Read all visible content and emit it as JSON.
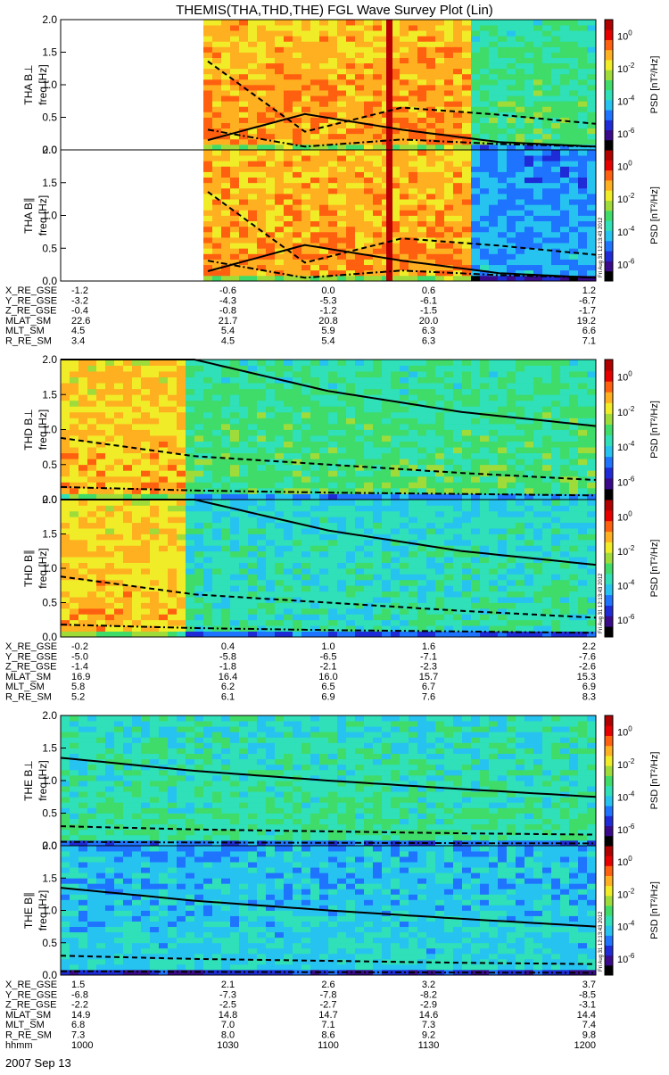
{
  "title": "THEMIS(THA,THD,THE) FGL Wave Survey Plot (Lin)",
  "date_label": "2007 Sep 13",
  "stamp": "Fri Aug 31 12:13:43 2012",
  "colorbar": {
    "label": "PSD [nT²/Hz]",
    "ticks": [
      {
        "base": "10",
        "exp": "0",
        "value": 1
      },
      {
        "base": "10",
        "exp": "-2",
        "value": 0.01
      },
      {
        "base": "10",
        "exp": "-4",
        "value": 0.0001
      },
      {
        "base": "10",
        "exp": "-6",
        "value": 1e-06
      }
    ],
    "colors": [
      "#000000",
      "#3a0a8a",
      "#1f2bd6",
      "#1f74ff",
      "#26c3f0",
      "#2fe0b8",
      "#3fdc6a",
      "#9fdc3a",
      "#f0ec28",
      "#ffb020",
      "#ff6010",
      "#e60000",
      "#b00000"
    ]
  },
  "chart_data": [
    {
      "type": "heatmap",
      "probe": "THA",
      "panels": [
        {
          "ylabel_component": "THA B⊥",
          "ylabel_freq": "freq [Hz]"
        },
        {
          "ylabel_component": "THA B∥",
          "ylabel_freq": "freq [Hz]"
        }
      ],
      "ylim": [
        0,
        2.0
      ],
      "y_ticks": [
        "2.0",
        "1.5",
        "1.0",
        "0.5",
        "0.0"
      ],
      "data_start_frac": 0.275,
      "spike_frac": 0.615,
      "quiet_frac": 0.77,
      "gyro_full": [
        0.15,
        0.55,
        0.31,
        0.12,
        0.05
      ],
      "gyro_half": [
        1.36,
        0.28,
        0.65,
        0.54,
        0.4
      ],
      "gyro_tenth": [
        0.31,
        0.05,
        0.16,
        0.09,
        0.05
      ],
      "ephemeris": [
        {
          "label": "X_RE_GSE",
          "values": [
            "-1.2",
            "-0.6",
            "0.0",
            "0.6",
            "1.2"
          ]
        },
        {
          "label": "Y_RE_GSE",
          "values": [
            "-3.2",
            "-4.3",
            "-5.3",
            "-6.1",
            "-6.7"
          ]
        },
        {
          "label": "Z_RE_GSE",
          "values": [
            "-0.4",
            "-0.8",
            "-1.2",
            "-1.5",
            "-1.7"
          ]
        },
        {
          "label": "MLAT_SM",
          "values": [
            "22.6",
            "21.7",
            "20.8",
            "20.0",
            "19.2"
          ]
        },
        {
          "label": "MLT_SM",
          "values": [
            "4.5",
            "5.4",
            "5.9",
            "6.3",
            "6.6"
          ]
        },
        {
          "label": "R_RE_SM",
          "values": [
            "3.4",
            "4.5",
            "5.4",
            "6.3",
            "7.1"
          ]
        }
      ]
    },
    {
      "type": "heatmap",
      "probe": "THD",
      "panels": [
        {
          "ylabel_component": "THD B⊥",
          "ylabel_freq": "freq [Hz]"
        },
        {
          "ylabel_component": "THD B∥",
          "ylabel_freq": "freq [Hz]"
        }
      ],
      "ylim": [
        0,
        2.0
      ],
      "y_ticks": [
        "2.0",
        "1.5",
        "1.0",
        "0.5",
        "0.0"
      ],
      "data_start_frac": 0.0,
      "active_end_frac": 0.24,
      "gyro_full": [
        2.6,
        2.0,
        1.55,
        1.25,
        1.05
      ],
      "gyro_half": [
        0.88,
        0.62,
        0.5,
        0.38,
        0.28
      ],
      "gyro_tenth": [
        0.18,
        0.13,
        0.1,
        0.08,
        0.06
      ],
      "ephemeris": [
        {
          "label": "X_RE_GSE",
          "values": [
            "-0.2",
            "0.4",
            "1.0",
            "1.6",
            "2.2"
          ]
        },
        {
          "label": "Y_RE_GSE",
          "values": [
            "-5.0",
            "-5.8",
            "-6.5",
            "-7.1",
            "-7.6"
          ]
        },
        {
          "label": "Z_RE_GSE",
          "values": [
            "-1.4",
            "-1.8",
            "-2.1",
            "-2.3",
            "-2.6"
          ]
        },
        {
          "label": "MLAT_SM",
          "values": [
            "16.9",
            "16.4",
            "16.0",
            "15.7",
            "15.3"
          ]
        },
        {
          "label": "MLT_SM",
          "values": [
            "5.8",
            "6.2",
            "6.5",
            "6.7",
            "6.9"
          ]
        },
        {
          "label": "R_RE_SM",
          "values": [
            "5.2",
            "6.1",
            "6.9",
            "7.6",
            "8.3"
          ]
        }
      ]
    },
    {
      "type": "heatmap",
      "probe": "THE",
      "panels": [
        {
          "ylabel_component": "THE B⊥",
          "ylabel_freq": "freq [Hz]"
        },
        {
          "ylabel_component": "THE B∥",
          "ylabel_freq": "freq [Hz]"
        }
      ],
      "ylim": [
        0,
        2.0
      ],
      "y_ticks": [
        "2.0",
        "1.5",
        "1.0",
        "0.5",
        "0.0"
      ],
      "data_start_frac": 0.0,
      "gyro_full": [
        1.35,
        1.15,
        1.0,
        0.87,
        0.75
      ],
      "gyro_half": [
        0.3,
        0.25,
        0.22,
        0.19,
        0.17
      ],
      "gyro_tenth": [
        0.06,
        0.05,
        0.045,
        0.04,
        0.035
      ],
      "ephemeris": [
        {
          "label": "X_RE_GSE",
          "values": [
            "1.5",
            "2.1",
            "2.6",
            "3.2",
            "3.7"
          ]
        },
        {
          "label": "Y_RE_GSE",
          "values": [
            "-6.8",
            "-7.3",
            "-7.8",
            "-8.2",
            "-8.5"
          ]
        },
        {
          "label": "Z_RE_GSE",
          "values": [
            "-2.2",
            "-2.5",
            "-2.7",
            "-2.9",
            "-3.1"
          ]
        },
        {
          "label": "MLAT_SM",
          "values": [
            "14.9",
            "14.8",
            "14.7",
            "14.6",
            "14.4"
          ]
        },
        {
          "label": "MLT_SM",
          "values": [
            "6.8",
            "7.0",
            "7.1",
            "7.3",
            "7.4"
          ]
        },
        {
          "label": "R_RE_SM",
          "values": [
            "7.3",
            "8.0",
            "8.6",
            "9.2",
            "9.8"
          ]
        },
        {
          "label": "hhmm",
          "values": [
            "1000",
            "1030",
            "1100",
            "1130",
            "1200"
          ]
        }
      ]
    }
  ]
}
